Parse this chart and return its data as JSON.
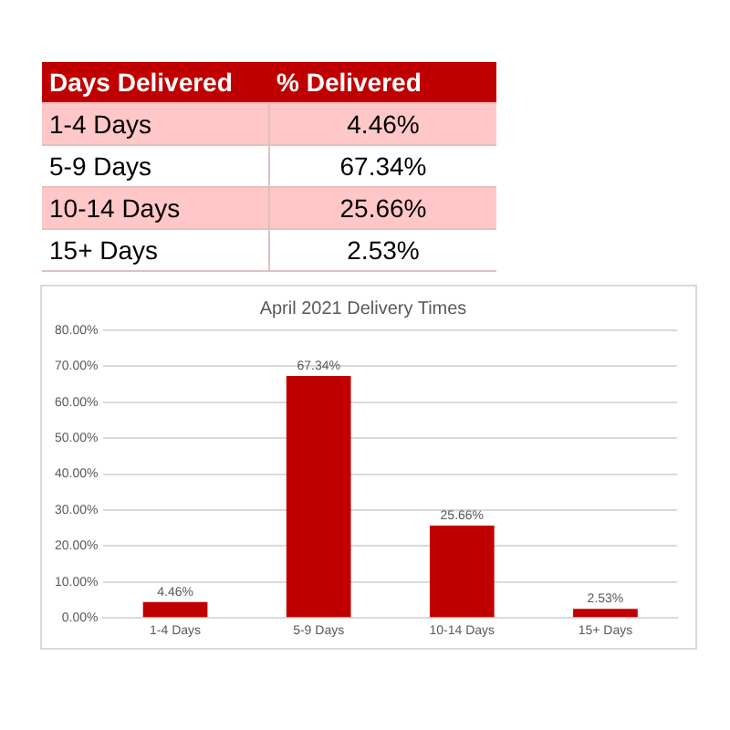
{
  "chart_data": {
    "type": "bar",
    "title": "April 2021 Delivery Times",
    "categories": [
      "1-4 Days",
      "5-9 Days",
      "10-14 Days",
      "15+ Days"
    ],
    "values": [
      4.46,
      67.34,
      25.66,
      2.53
    ],
    "value_labels": [
      "4.46%",
      "67.34%",
      "25.66%",
      "2.53%"
    ],
    "color": "#c00000",
    "ylim": [
      0,
      80
    ],
    "yticks": [
      {
        "value": 0,
        "label": "0.00%"
      },
      {
        "value": 10,
        "label": "10.00%"
      },
      {
        "value": 20,
        "label": "20.00%"
      },
      {
        "value": 30,
        "label": "30.00%"
      },
      {
        "value": 40,
        "label": "40.00%"
      },
      {
        "value": 50,
        "label": "50.00%"
      },
      {
        "value": 60,
        "label": "60.00%"
      },
      {
        "value": 70,
        "label": "70.00%"
      },
      {
        "value": 80,
        "label": "80.00%"
      }
    ],
    "grid": "y",
    "legend": false,
    "annotations": [
      "Days Delivered",
      "% Delivered"
    ]
  }
}
